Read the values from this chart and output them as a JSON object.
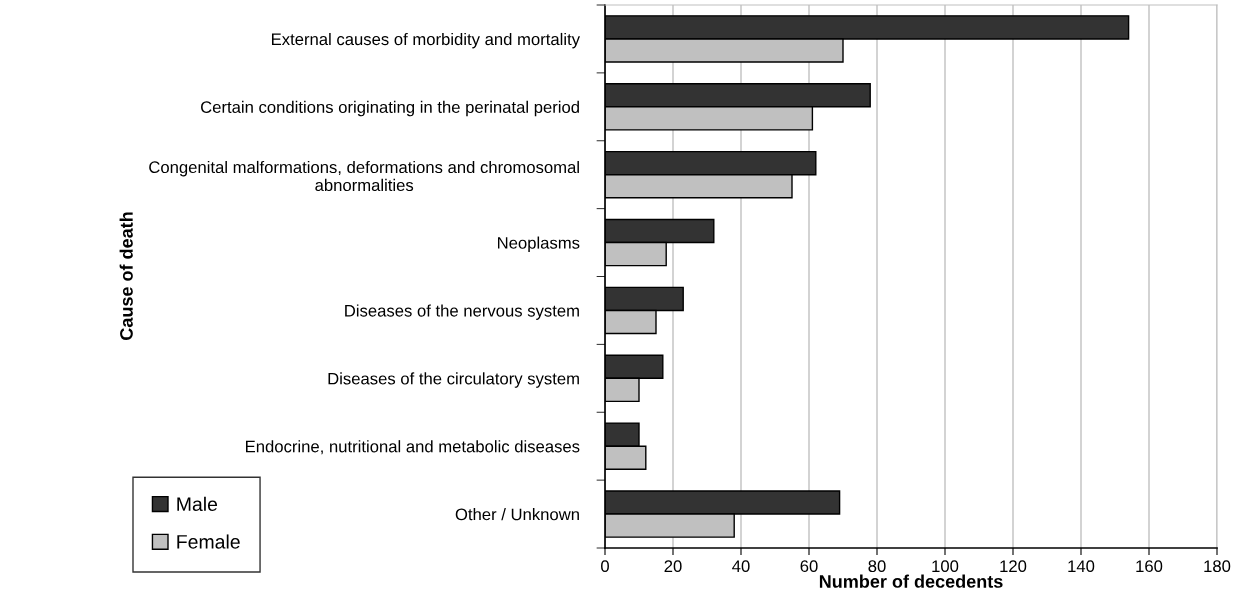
{
  "chart_data": {
    "type": "bar",
    "orientation": "horizontal",
    "xlabel": "Number of decedents",
    "ylabel": "Cause of death",
    "categories": [
      "External causes of morbidity and mortality",
      "Certain conditions originating in the perinatal period",
      "Congenital malformations, deformations and chromosomal\nabnormalities",
      "Neoplasms",
      "Diseases of the nervous system",
      "Diseases of the circulatory system",
      "Endocrine, nutritional and metabolic diseases",
      "Other / Unknown"
    ],
    "series": [
      {
        "name": "Male",
        "color": "#333333",
        "values": [
          154,
          78,
          62,
          32,
          23,
          17,
          10,
          69
        ]
      },
      {
        "name": "Female",
        "color": "#c0c0c0",
        "values": [
          70,
          61,
          55,
          18,
          15,
          10,
          12,
          38
        ]
      }
    ],
    "xlim": [
      0,
      180
    ],
    "xticks": [
      0,
      20,
      40,
      60,
      80,
      100,
      120,
      140,
      160,
      180
    ],
    "grid": "x",
    "legend": "bottom left"
  }
}
